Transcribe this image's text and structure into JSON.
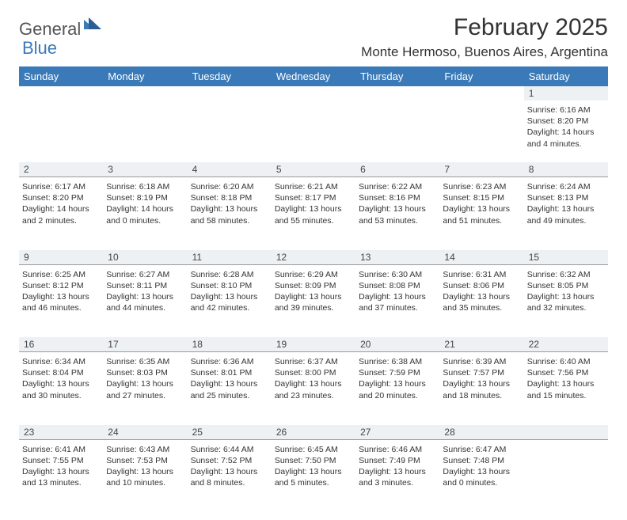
{
  "logo": {
    "text1": "General",
    "text2": "Blue"
  },
  "title": "February 2025",
  "location": "Monte Hermoso, Buenos Aires, Argentina",
  "colors": {
    "header_bg": "#3a7ab8",
    "header_text": "#ffffff",
    "daynum_bg": "#eef1f4",
    "border": "#999999",
    "body_text": "#333333",
    "logo_gray": "#555555",
    "logo_blue": "#3a7ab8"
  },
  "dayHeaders": [
    "Sunday",
    "Monday",
    "Tuesday",
    "Wednesday",
    "Thursday",
    "Friday",
    "Saturday"
  ],
  "weeks": [
    [
      null,
      null,
      null,
      null,
      null,
      null,
      {
        "n": "1",
        "sr": "6:16 AM",
        "ss": "8:20 PM",
        "dl": "14 hours and 4 minutes."
      }
    ],
    [
      {
        "n": "2",
        "sr": "6:17 AM",
        "ss": "8:20 PM",
        "dl": "14 hours and 2 minutes."
      },
      {
        "n": "3",
        "sr": "6:18 AM",
        "ss": "8:19 PM",
        "dl": "14 hours and 0 minutes."
      },
      {
        "n": "4",
        "sr": "6:20 AM",
        "ss": "8:18 PM",
        "dl": "13 hours and 58 minutes."
      },
      {
        "n": "5",
        "sr": "6:21 AM",
        "ss": "8:17 PM",
        "dl": "13 hours and 55 minutes."
      },
      {
        "n": "6",
        "sr": "6:22 AM",
        "ss": "8:16 PM",
        "dl": "13 hours and 53 minutes."
      },
      {
        "n": "7",
        "sr": "6:23 AM",
        "ss": "8:15 PM",
        "dl": "13 hours and 51 minutes."
      },
      {
        "n": "8",
        "sr": "6:24 AM",
        "ss": "8:13 PM",
        "dl": "13 hours and 49 minutes."
      }
    ],
    [
      {
        "n": "9",
        "sr": "6:25 AM",
        "ss": "8:12 PM",
        "dl": "13 hours and 46 minutes."
      },
      {
        "n": "10",
        "sr": "6:27 AM",
        "ss": "8:11 PM",
        "dl": "13 hours and 44 minutes."
      },
      {
        "n": "11",
        "sr": "6:28 AM",
        "ss": "8:10 PM",
        "dl": "13 hours and 42 minutes."
      },
      {
        "n": "12",
        "sr": "6:29 AM",
        "ss": "8:09 PM",
        "dl": "13 hours and 39 minutes."
      },
      {
        "n": "13",
        "sr": "6:30 AM",
        "ss": "8:08 PM",
        "dl": "13 hours and 37 minutes."
      },
      {
        "n": "14",
        "sr": "6:31 AM",
        "ss": "8:06 PM",
        "dl": "13 hours and 35 minutes."
      },
      {
        "n": "15",
        "sr": "6:32 AM",
        "ss": "8:05 PM",
        "dl": "13 hours and 32 minutes."
      }
    ],
    [
      {
        "n": "16",
        "sr": "6:34 AM",
        "ss": "8:04 PM",
        "dl": "13 hours and 30 minutes."
      },
      {
        "n": "17",
        "sr": "6:35 AM",
        "ss": "8:03 PM",
        "dl": "13 hours and 27 minutes."
      },
      {
        "n": "18",
        "sr": "6:36 AM",
        "ss": "8:01 PM",
        "dl": "13 hours and 25 minutes."
      },
      {
        "n": "19",
        "sr": "6:37 AM",
        "ss": "8:00 PM",
        "dl": "13 hours and 23 minutes."
      },
      {
        "n": "20",
        "sr": "6:38 AM",
        "ss": "7:59 PM",
        "dl": "13 hours and 20 minutes."
      },
      {
        "n": "21",
        "sr": "6:39 AM",
        "ss": "7:57 PM",
        "dl": "13 hours and 18 minutes."
      },
      {
        "n": "22",
        "sr": "6:40 AM",
        "ss": "7:56 PM",
        "dl": "13 hours and 15 minutes."
      }
    ],
    [
      {
        "n": "23",
        "sr": "6:41 AM",
        "ss": "7:55 PM",
        "dl": "13 hours and 13 minutes."
      },
      {
        "n": "24",
        "sr": "6:43 AM",
        "ss": "7:53 PM",
        "dl": "13 hours and 10 minutes."
      },
      {
        "n": "25",
        "sr": "6:44 AM",
        "ss": "7:52 PM",
        "dl": "13 hours and 8 minutes."
      },
      {
        "n": "26",
        "sr": "6:45 AM",
        "ss": "7:50 PM",
        "dl": "13 hours and 5 minutes."
      },
      {
        "n": "27",
        "sr": "6:46 AM",
        "ss": "7:49 PM",
        "dl": "13 hours and 3 minutes."
      },
      {
        "n": "28",
        "sr": "6:47 AM",
        "ss": "7:48 PM",
        "dl": "13 hours and 0 minutes."
      },
      null
    ]
  ],
  "labels": {
    "sunrise": "Sunrise:",
    "sunset": "Sunset:",
    "daylight": "Daylight:"
  }
}
